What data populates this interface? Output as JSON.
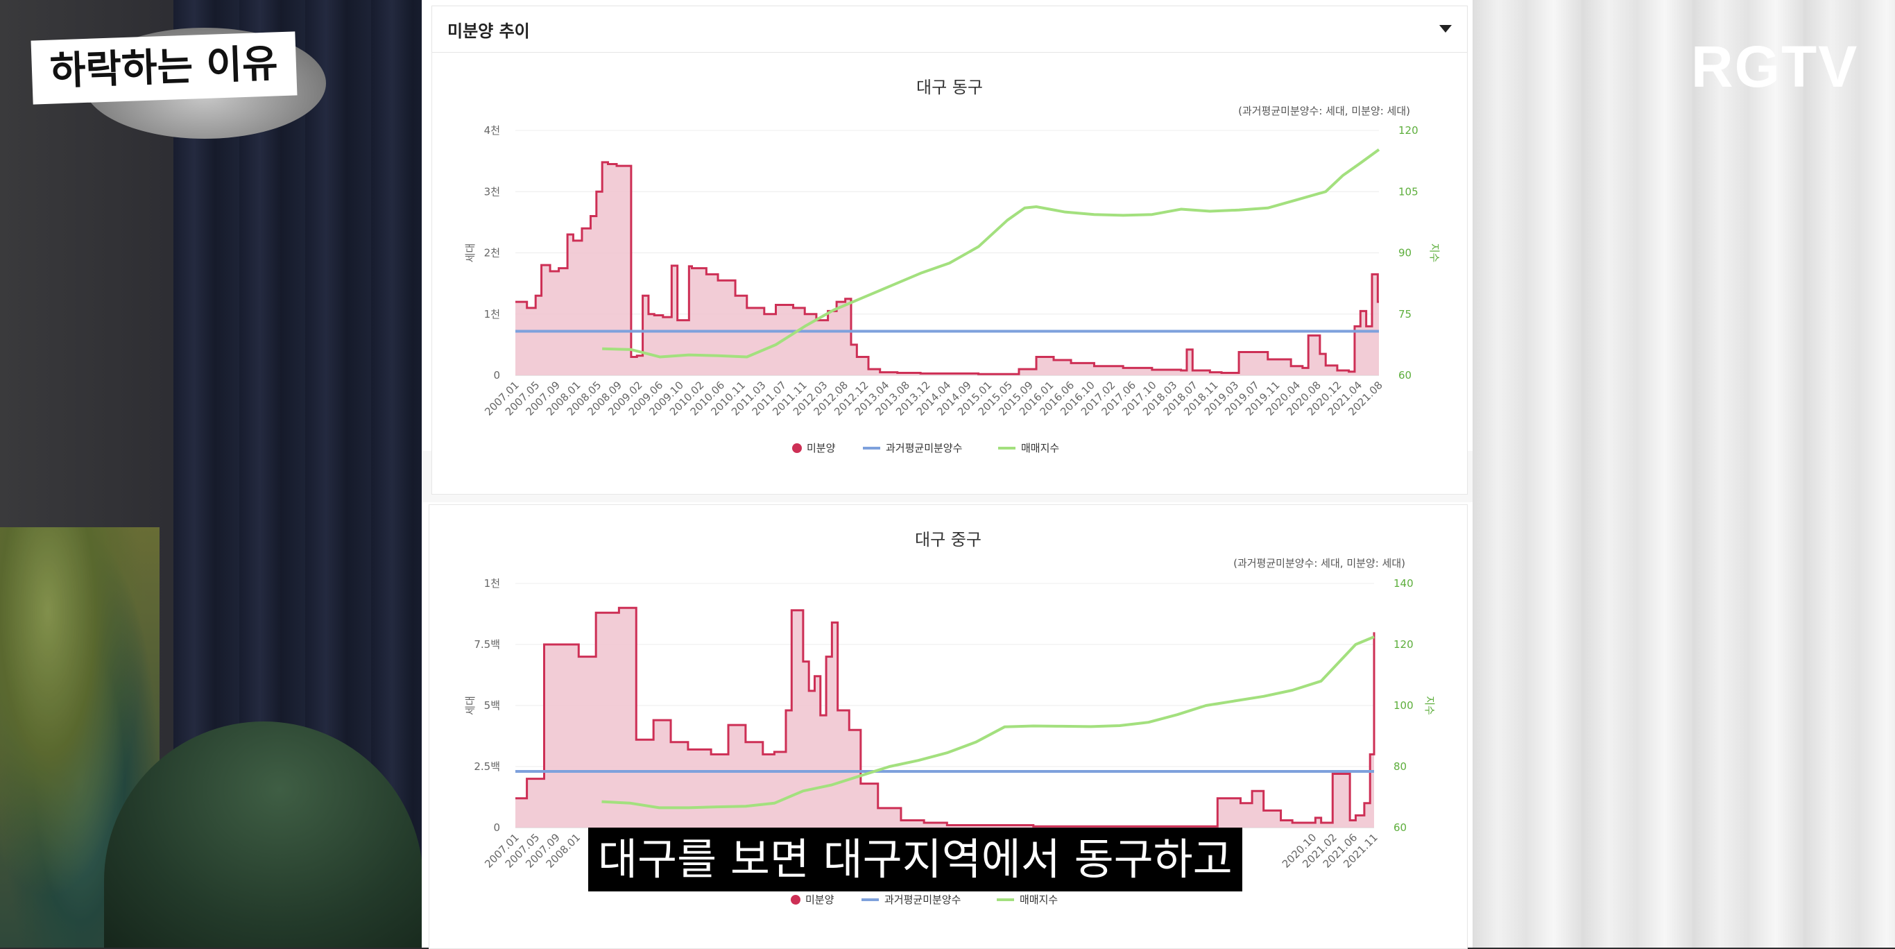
{
  "overlay": {
    "title_badge": "하락하는 이유",
    "logo": "RGTV",
    "subtitle": "대구를 보면 대구지역에서 동구하고"
  },
  "header": {
    "title": "미분양 추이"
  },
  "colors": {
    "unsold": "#cd2f55",
    "unsold_fill": "#f1c7d2",
    "avg": "#7ea1dc",
    "index": "#a3e07e",
    "right_axis": "#5dae3c"
  },
  "legend": {
    "unsold": "미분양",
    "avg": "과거평균미분양수",
    "index": "매매지수"
  },
  "chart_data": [
    {
      "type": "line",
      "title": "대구 동구",
      "unit_note": "(과거평균미분양수: 세대, 미분양: 세대)",
      "ylabel": "세대",
      "y2label": "지수",
      "ylim": [
        0,
        4000
      ],
      "y2lim": [
        60,
        120
      ],
      "yticks": [
        0,
        1000,
        2000,
        3000,
        4000
      ],
      "ytick_labels": [
        "0",
        "1천",
        "2천",
        "3천",
        "4천"
      ],
      "y2ticks": [
        60,
        75,
        90,
        105,
        120
      ],
      "y2tick_labels": [
        "60",
        "75",
        "90",
        "105",
        "120"
      ],
      "x_start": 2007.0,
      "x_end": 2021.92,
      "xtick_labels": [
        "2007.01",
        "2007.05",
        "2007.09",
        "2008.01",
        "2008.05",
        "2008.09",
        "2009.02",
        "2009.06",
        "2009.10",
        "2010.02",
        "2010.06",
        "2010.11",
        "2011.03",
        "2011.07",
        "2011.11",
        "2012.03",
        "2012.08",
        "2012.12",
        "2013.04",
        "2013.08",
        "2013.12",
        "2014.04",
        "2014.09",
        "2015.01",
        "2015.05",
        "2015.09",
        "2016.01",
        "2016.06",
        "2016.10",
        "2017.02",
        "2017.06",
        "2017.10",
        "2018.03",
        "2018.07",
        "2018.11",
        "2019.03",
        "2019.07",
        "2019.11",
        "2020.04",
        "2020.08",
        "2020.12",
        "2021.04",
        "2021.08"
      ],
      "avg_value": 720,
      "series": [
        {
          "name": "미분양",
          "x": [
            2007.0,
            2007.2,
            2007.35,
            2007.45,
            2007.6,
            2007.75,
            2007.9,
            2008.0,
            2008.15,
            2008.3,
            2008.4,
            2008.5,
            2008.6,
            2008.75,
            2009.0,
            2009.1,
            2009.2,
            2009.3,
            2009.4,
            2009.55,
            2009.7,
            2009.8,
            2010.0,
            2010.05,
            2010.3,
            2010.5,
            2010.8,
            2011.0,
            2011.3,
            2011.5,
            2011.8,
            2012.0,
            2012.2,
            2012.4,
            2012.55,
            2012.7,
            2012.8,
            2012.9,
            2013.1,
            2013.3,
            2013.6,
            2014.0,
            2014.5,
            2015.0,
            2015.5,
            2015.7,
            2016.0,
            2016.3,
            2016.6,
            2017.0,
            2017.5,
            2018.0,
            2018.5,
            2018.6,
            2018.7,
            2019.0,
            2019.2,
            2019.5,
            2020.0,
            2020.4,
            2020.6,
            2020.7,
            2020.9,
            2021.0,
            2021.2,
            2021.4,
            2021.5,
            2021.6,
            2021.7,
            2021.8,
            2021.9
          ],
          "values": [
            1200,
            1100,
            1300,
            1800,
            1700,
            1750,
            2300,
            2200,
            2400,
            2600,
            3000,
            3480,
            3450,
            3420,
            300,
            320,
            1300,
            1000,
            980,
            950,
            1790,
            900,
            1780,
            1750,
            1650,
            1550,
            1300,
            1100,
            1000,
            1150,
            1100,
            1000,
            900,
            1050,
            1200,
            1250,
            500,
            300,
            100,
            50,
            40,
            30,
            30,
            20,
            20,
            100,
            300,
            250,
            200,
            150,
            120,
            90,
            80,
            420,
            80,
            50,
            40,
            380,
            260,
            150,
            120,
            650,
            350,
            160,
            80,
            60,
            800,
            1050,
            800,
            1650,
            1200
          ]
        },
        {
          "name": "매매지수",
          "x": [
            2008.5,
            2009.0,
            2009.5,
            2010.0,
            2010.5,
            2011.0,
            2011.5,
            2012.0,
            2012.5,
            2013.0,
            2013.5,
            2014.0,
            2014.5,
            2015.0,
            2015.5,
            2015.8,
            2016.0,
            2016.5,
            2017.0,
            2017.5,
            2018.0,
            2018.5,
            2019.0,
            2019.5,
            2020.0,
            2020.5,
            2021.0,
            2021.3,
            2021.6,
            2021.92
          ],
          "values": [
            66.5,
            66.3,
            64.5,
            65.0,
            64.8,
            64.5,
            67.5,
            72.0,
            76.0,
            79.0,
            82.0,
            85.0,
            87.5,
            91.5,
            98.0,
            101.0,
            101.3,
            100.0,
            99.4,
            99.2,
            99.4,
            100.7,
            100.2,
            100.5,
            101.0,
            103.0,
            105.0,
            109.0,
            112.0,
            115.3
          ]
        }
      ]
    },
    {
      "type": "line",
      "title": "대구 중구",
      "unit_note": "(과거평균미분양수: 세대, 미분양: 세대)",
      "ylabel": "세대",
      "y2label": "지수",
      "ylim": [
        0,
        1000
      ],
      "y2lim": [
        60,
        140
      ],
      "yticks": [
        0,
        250,
        500,
        750,
        1000
      ],
      "ytick_labels": [
        "0",
        "2.5백",
        "5백",
        "7.5백",
        "1천"
      ],
      "y2ticks": [
        60,
        80,
        100,
        120,
        140
      ],
      "y2tick_labels": [
        "60",
        "80",
        "100",
        "120",
        "140"
      ],
      "x_start": 2007.0,
      "x_end": 2021.92,
      "xtick_labels": [
        "2007.01",
        "2007.05",
        "2007.09",
        "2008.01",
        "2020.10",
        "2021.02",
        "2021.06",
        "2021.11"
      ],
      "avg_value": 230,
      "series": [
        {
          "name": "미분양",
          "x": [
            2007.0,
            2007.2,
            2007.5,
            2008.1,
            2008.4,
            2008.8,
            2009.1,
            2009.4,
            2009.7,
            2010.0,
            2010.4,
            2010.7,
            2011.0,
            2011.3,
            2011.5,
            2011.7,
            2011.8,
            2012.0,
            2012.1,
            2012.2,
            2012.3,
            2012.4,
            2012.5,
            2012.6,
            2012.8,
            2013.0,
            2013.3,
            2013.7,
            2014.1,
            2014.5,
            2015.0,
            2016.0,
            2017.0,
            2018.0,
            2019.0,
            2019.2,
            2019.6,
            2019.8,
            2020.0,
            2020.3,
            2020.5,
            2020.7,
            2020.9,
            2021.0,
            2021.2,
            2021.5,
            2021.6,
            2021.75,
            2021.85,
            2021.92
          ],
          "values": [
            120,
            200,
            750,
            700,
            880,
            900,
            360,
            440,
            350,
            320,
            300,
            420,
            350,
            300,
            310,
            480,
            890,
            680,
            560,
            620,
            460,
            700,
            840,
            480,
            400,
            180,
            80,
            30,
            20,
            10,
            10,
            5,
            5,
            5,
            5,
            120,
            100,
            150,
            70,
            30,
            20,
            20,
            40,
            20,
            220,
            30,
            50,
            100,
            300,
            800
          ]
        },
        {
          "name": "매매지수",
          "x": [
            2008.5,
            2009.0,
            2009.5,
            2010.0,
            2010.5,
            2011.0,
            2011.5,
            2012.0,
            2012.5,
            2013.0,
            2013.5,
            2014.0,
            2014.5,
            2015.0,
            2015.5,
            2016.0,
            2016.5,
            2017.0,
            2017.5,
            2018.0,
            2018.5,
            2019.0,
            2019.5,
            2020.0,
            2020.5,
            2021.0,
            2021.3,
            2021.6,
            2021.92
          ],
          "values": [
            68.5,
            68.0,
            66.5,
            66.5,
            66.8,
            67.0,
            68.0,
            72.0,
            74.0,
            77.0,
            80.0,
            82.0,
            84.5,
            88.0,
            93.0,
            93.3,
            93.2,
            93.1,
            93.4,
            94.5,
            97.0,
            100.0,
            101.5,
            103.0,
            105.0,
            108.0,
            114.0,
            120.0,
            122.5
          ]
        }
      ]
    }
  ]
}
